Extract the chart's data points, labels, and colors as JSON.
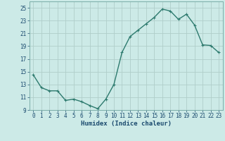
{
  "x": [
    0,
    1,
    2,
    3,
    4,
    5,
    6,
    7,
    8,
    9,
    10,
    11,
    12,
    13,
    14,
    15,
    16,
    17,
    18,
    19,
    20,
    21,
    22,
    23
  ],
  "y": [
    14.5,
    12.5,
    12.0,
    12.0,
    10.5,
    10.7,
    10.3,
    9.7,
    9.2,
    10.7,
    13.0,
    18.0,
    20.5,
    21.5,
    22.5,
    23.5,
    24.8,
    24.5,
    23.2,
    24.0,
    22.3,
    19.2,
    19.1,
    18.0
  ],
  "line_color": "#2d7a6e",
  "marker": "+",
  "marker_size": 3,
  "bg_color": "#cceae7",
  "grid_color": "#b0ceca",
  "xlabel": "Humidex (Indice chaleur)",
  "xlim": [
    -0.5,
    23.5
  ],
  "ylim": [
    9,
    26
  ],
  "yticks": [
    9,
    11,
    13,
    15,
    17,
    19,
    21,
    23,
    25
  ],
  "xticks": [
    0,
    1,
    2,
    3,
    4,
    5,
    6,
    7,
    8,
    9,
    10,
    11,
    12,
    13,
    14,
    15,
    16,
    17,
    18,
    19,
    20,
    21,
    22,
    23
  ],
  "xlabel_fontsize": 6.5,
  "tick_fontsize": 5.5,
  "line_width": 1.0,
  "xlabel_color": "#1a4a6e",
  "tick_color": "#1a4a6e"
}
